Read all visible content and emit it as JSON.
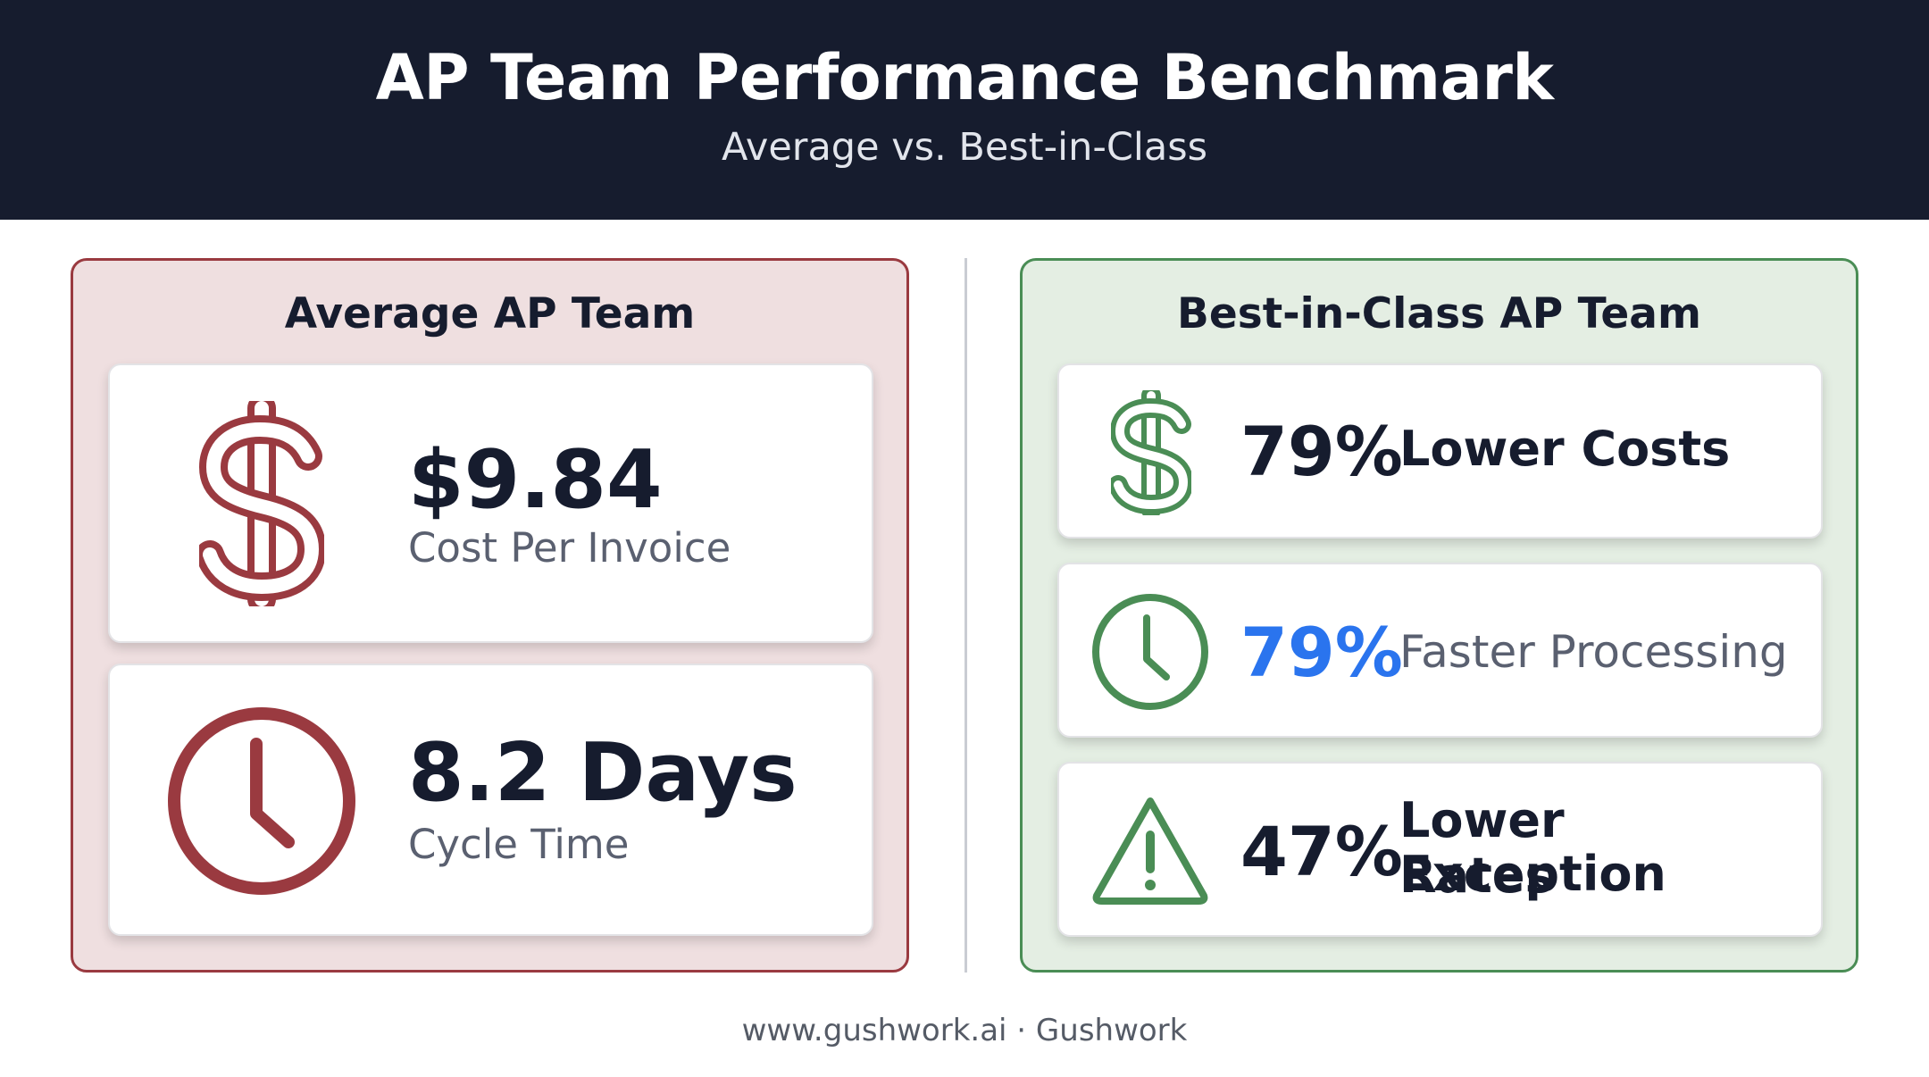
{
  "header": {
    "title": "AP Team Performance Benchmark",
    "subtitle": "Average vs. Best-in-Class"
  },
  "average": {
    "title": "Average AP Team",
    "accent_color": "#9a3a40",
    "cards": [
      {
        "icon": "dollar-icon",
        "value": "$9.84",
        "label": "Cost Per Invoice"
      },
      {
        "icon": "clock-icon",
        "value": "8.2 Days",
        "label": "Cycle Time"
      }
    ]
  },
  "best": {
    "title": "Best-in-Class AP Team",
    "accent_color": "#4a8d55",
    "cards": [
      {
        "icon": "dollar-icon",
        "percent": "79%",
        "label": "Lower Costs"
      },
      {
        "icon": "clock-icon",
        "percent": "79%",
        "label": "Faster Processing",
        "percent_color": "#2a74ee"
      },
      {
        "icon": "warning-icon",
        "percent": "47%",
        "label_line1": "Lower Exception",
        "label_line2": "Rates"
      }
    ]
  },
  "footer": {
    "text": "www.gushwork.ai · Gushwork"
  }
}
